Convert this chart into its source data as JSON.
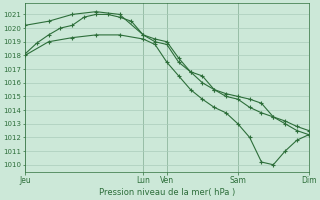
{
  "bg_color": "#cce8d8",
  "grid_color": "#aaccbb",
  "line_color": "#2d6e3a",
  "xlabel": "Pression niveau de la mer( hPa )",
  "xlabel_color": "#2d6e3a",
  "tick_color": "#2d6e3a",
  "ylim": [
    1009.5,
    1021.8
  ],
  "yticks": [
    1010,
    1011,
    1012,
    1013,
    1014,
    1015,
    1016,
    1017,
    1018,
    1019,
    1020,
    1021
  ],
  "xtick_labels": [
    "Jeu",
    "Lun",
    "Ven",
    "Sam",
    "Dim"
  ],
  "xtick_positions": [
    0,
    10,
    12,
    18,
    24
  ],
  "vline_positions": [
    0,
    10,
    12,
    18,
    24
  ],
  "xlim": [
    0,
    24
  ],
  "series1_x": [
    0,
    1,
    2,
    3,
    4,
    5,
    6,
    7,
    8,
    9,
    10,
    11,
    12,
    13,
    14,
    15,
    16,
    17,
    18,
    19,
    20,
    21,
    22,
    23,
    24
  ],
  "series1_y": [
    1018.1,
    1018.9,
    1019.5,
    1020.0,
    1020.2,
    1020.8,
    1021.0,
    1021.0,
    1020.8,
    1020.5,
    1019.5,
    1019.0,
    1018.8,
    1017.5,
    1016.8,
    1016.5,
    1015.5,
    1015.2,
    1015.0,
    1014.8,
    1014.5,
    1013.5,
    1013.0,
    1012.5,
    1012.2
  ],
  "series2_x": [
    0,
    2,
    4,
    6,
    8,
    10,
    11,
    12,
    13,
    14,
    15,
    16,
    17,
    18,
    19,
    20,
    21,
    22,
    23,
    24
  ],
  "series2_y": [
    1020.2,
    1020.5,
    1021.0,
    1021.2,
    1021.0,
    1019.5,
    1019.2,
    1019.0,
    1017.8,
    1016.8,
    1016.0,
    1015.5,
    1015.0,
    1014.8,
    1014.2,
    1013.8,
    1013.5,
    1013.2,
    1012.8,
    1012.5
  ],
  "series3_x": [
    0,
    2,
    4,
    6,
    8,
    10,
    11,
    12,
    13,
    14,
    15,
    16,
    17,
    18,
    19,
    20,
    21,
    22,
    23,
    24
  ],
  "series3_y": [
    1018.0,
    1019.0,
    1019.3,
    1019.5,
    1019.5,
    1019.2,
    1018.8,
    1017.5,
    1016.5,
    1015.5,
    1014.8,
    1014.2,
    1013.8,
    1013.0,
    1012.0,
    1010.2,
    1010.0,
    1011.0,
    1011.8,
    1012.2
  ]
}
